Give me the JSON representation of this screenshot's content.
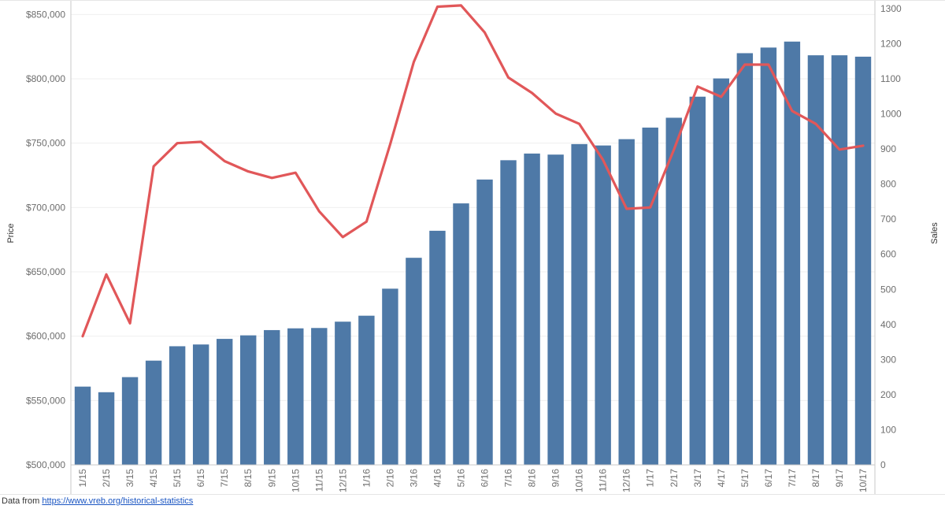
{
  "chart_data": {
    "type": "bar+line",
    "categories": [
      "1/15",
      "2/15",
      "3/15",
      "4/15",
      "5/15",
      "6/15",
      "7/15",
      "8/15",
      "9/15",
      "10/15",
      "11/15",
      "12/15",
      "1/16",
      "2/16",
      "3/16",
      "4/16",
      "5/16",
      "6/16",
      "7/16",
      "8/16",
      "9/16",
      "10/16",
      "11/16",
      "12/16",
      "1/17",
      "2/17",
      "3/17",
      "4/17",
      "5/17",
      "6/17",
      "7/17",
      "8/17",
      "9/17",
      "10/17"
    ],
    "series": [
      {
        "name": "Sales",
        "type": "bar",
        "axis": "right",
        "color": "#4e79a7",
        "values": [
          223,
          207,
          250,
          297,
          338,
          343,
          359,
          369,
          384,
          389,
          390,
          408,
          425,
          502,
          590,
          667,
          745,
          813,
          868,
          887,
          884,
          914,
          910,
          928,
          961,
          989,
          1049,
          1101,
          1173,
          1189,
          1206,
          1167,
          1167,
          1163
        ]
      },
      {
        "name": "Price",
        "type": "line",
        "axis": "left",
        "color": "#e15759",
        "values": [
          600000,
          648000,
          610000,
          732000,
          750000,
          751000,
          736000,
          728000,
          723000,
          727000,
          697000,
          677000,
          689000,
          749000,
          813000,
          856000,
          857000,
          836000,
          801000,
          789000,
          773000,
          765000,
          737000,
          699000,
          700000,
          745000,
          794000,
          786000,
          811000,
          811000,
          775000,
          765000,
          745000,
          748000
        ]
      }
    ],
    "ylabel": "Price",
    "y2label": "Sales",
    "ylim": [
      500000,
      860000
    ],
    "y2lim": [
      0,
      1320
    ],
    "yticks": [
      "$500,000",
      "$550,000",
      "$600,000",
      "$650,000",
      "$700,000",
      "$750,000",
      "$800,000",
      "$850,000"
    ],
    "y2ticks": [
      0,
      100,
      200,
      300,
      400,
      500,
      600,
      700,
      800,
      900,
      1000,
      1100,
      1200,
      1300
    ],
    "grid": true
  },
  "source": {
    "prefix": "Data from ",
    "link_text": "https://www.vreb.org/historical-statistics"
  }
}
